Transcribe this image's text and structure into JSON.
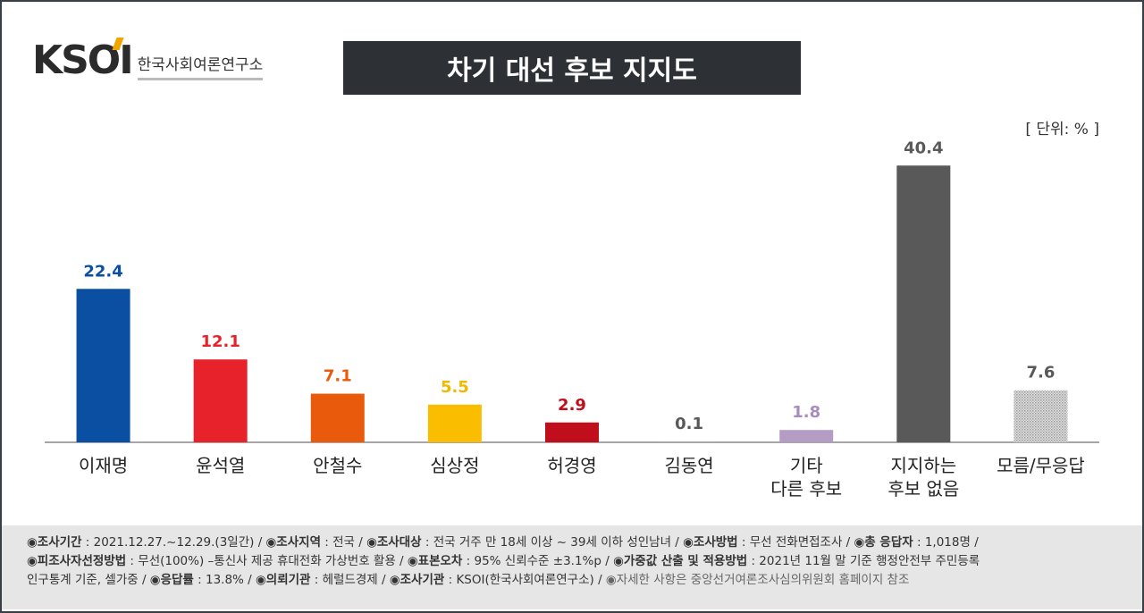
{
  "logo": {
    "mark": "KSOI",
    "subtitle": "한국사회여론연구소"
  },
  "title": "차기 대선 후보 지지도",
  "unit": "[ 단위: % ]",
  "colors": {
    "title_bg": "#2d3136",
    "axis": "#888888"
  },
  "chart_data": {
    "type": "bar",
    "title": "차기 대선 후보 지지도",
    "unit": "%",
    "categories": [
      [
        "이재명"
      ],
      [
        "윤석열"
      ],
      [
        "안철수"
      ],
      [
        "심상정"
      ],
      [
        "허경영"
      ],
      [
        "김동연"
      ],
      [
        "기타",
        "다른 후보"
      ],
      [
        "지지하는",
        "후보 없음"
      ],
      [
        "모름/무응답"
      ]
    ],
    "values": [
      22.4,
      12.1,
      7.1,
      5.5,
      2.9,
      0.1,
      1.8,
      40.4,
      7.6
    ],
    "labels": [
      "22.4",
      "12.1",
      "7.1",
      "5.5",
      "2.9",
      "0.1",
      "1.8",
      "40.4",
      "7.6"
    ],
    "bar_colors": [
      "#0b4fa3",
      "#e8222b",
      "#ea5a0c",
      "#fbbd00",
      "#c00e1c",
      "#aaaaaa",
      "#b49cc4",
      "#595959",
      "pattern"
    ],
    "label_colors": [
      "#0b4fa3",
      "#e8222b",
      "#ea5a0c",
      "#f2b800",
      "#c00e1c",
      "#595959",
      "#a88cc0",
      "#595959",
      "#595959"
    ],
    "ylim": [
      0,
      45
    ],
    "grid": false
  },
  "footer": {
    "line1": [
      {
        "key": "◉조사기간",
        "val": " : 2021.12.27.~12.29.(3일간)  / "
      },
      {
        "key": "◉조사지역",
        "val": " : 전국 / "
      },
      {
        "key": "◉조사대상",
        "val": " : 전국 거주 만 18세 이상 ~ 39세 이하 성인남녀 / "
      },
      {
        "key": "◉조사방법",
        "val": " : 무선 전화면접조사 / "
      },
      {
        "key": "◉총 응답자",
        "val": " : 1,018명 /"
      }
    ],
    "line2": [
      {
        "key": "◉피조사자선정방법",
        "val": " : 무선(100%) –통신사 제공 휴대전화 가상번호 활용 / "
      },
      {
        "key": "◉표본오차",
        "val": " : 95% 신뢰수준 ±3.1%p / "
      },
      {
        "key": "◉가중값 산출 및 적용방법",
        "val": " : 2021년 11월 말 기준 행정안전부 주민등록"
      }
    ],
    "line3": [
      {
        "key": "",
        "val": "인구통계 기준, 셀가중 / "
      },
      {
        "key": "◉응답률",
        "val": " : 13.8% / "
      },
      {
        "key": "◉의뢰기관",
        "val": " : 헤럴드경제 / "
      },
      {
        "key": "◉조사기관",
        "val": " : KSOI(한국사회여론연구소) / "
      }
    ],
    "note": "◉자세한 사항은 중앙선거여론조사심의위원회 홈페이지 참조"
  }
}
